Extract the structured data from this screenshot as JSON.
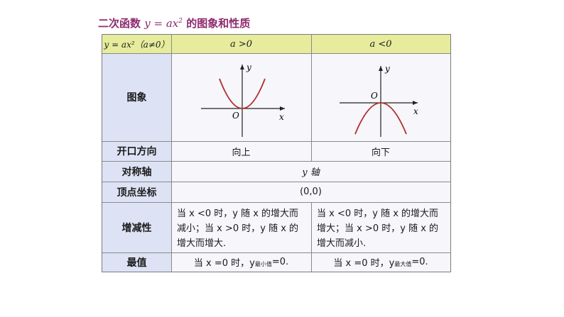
{
  "title": {
    "prefix": "二次函数",
    "func": "y = ax",
    "exp": "2",
    "suffix": " 的图象和性质"
  },
  "header": {
    "col0": "y = ax²（a≠0）",
    "col1": "a >0",
    "col2": "a <0"
  },
  "rows": {
    "graph_label": "图象",
    "opening_label": "开口方向",
    "opening_pos": "向上",
    "opening_neg": "向下",
    "axis_label": "对称轴",
    "axis_value": "y 轴",
    "vertex_label": "顶点坐标",
    "vertex_value": "(0,0)",
    "mono_label": "增减性",
    "mono_pos": "当 x <0 时，y 随 x 的增大而减小；当 x >0 时，y 随 x 的增大而增大.",
    "mono_neg": "当 x <0 时，y 随 x 的增大而增大；当 x >0 时，y 随 x 的增大而减小.",
    "extreme_label": "最值",
    "extreme_pos_main": "当 x =0 时，y",
    "extreme_pos_sub": "最小值",
    "extreme_pos_tail": "=0.",
    "extreme_neg_main": "当 x =0 时，y",
    "extreme_neg_sub": "最大值",
    "extreme_neg_tail": "=0."
  },
  "graph": {
    "axis_x": "x",
    "axis_y": "y",
    "origin": "O",
    "curve_color": "#b0302a"
  }
}
